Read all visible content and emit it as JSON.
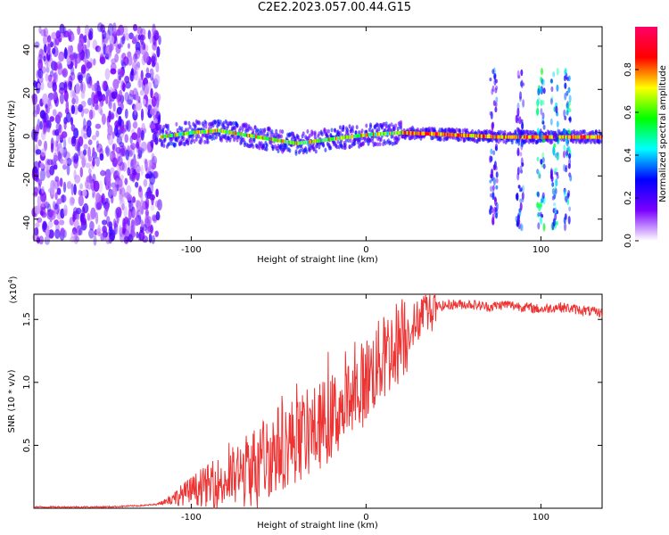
{
  "title": "C2E2.2023.057.00.44.G15",
  "chart_data": [
    {
      "type": "heatmap",
      "xlabel": "Height of straight line (km)",
      "ylabel": "Frequency (Hz)",
      "xlim": [
        -190,
        135
      ],
      "ylim": [
        -50,
        49
      ],
      "x_ticks": [
        "-100",
        "0",
        "100"
      ],
      "y_ticks": [
        "40",
        "20",
        "0",
        "-20",
        "-40"
      ],
      "colorbar": {
        "label": "Normalized spectral amplitude",
        "range": [
          0,
          1
        ],
        "ticks": [
          "0.0",
          "0.2",
          "0.4",
          "0.6",
          "0.8"
        ],
        "colors": [
          "#ffffff",
          "#7a00ff",
          "#0000ff",
          "#00ffff",
          "#00ff00",
          "#ffff00",
          "#ff0000",
          "#ff0066"
        ]
      },
      "regions": [
        {
          "name": "noise",
          "x_range": [
            -190,
            -118
          ],
          "freq_range": [
            -50,
            49
          ],
          "amplitude": 0.15
        },
        {
          "name": "ridge",
          "x_range": [
            -118,
            135
          ],
          "freq": [
            [
              -118,
              -2
            ],
            [
              -100,
              0
            ],
            [
              -85,
              1
            ],
            [
              -70,
              -1
            ],
            [
              -55,
              -3
            ],
            [
              -40,
              -5
            ],
            [
              -30,
              -4
            ],
            [
              -20,
              -3
            ],
            [
              -10,
              -2
            ],
            [
              0,
              -1
            ],
            [
              20,
              0
            ],
            [
              50,
              -1
            ],
            [
              75,
              -2
            ],
            [
              100,
              -2
            ],
            [
              135,
              -2
            ]
          ],
          "amplitude": 0.85
        }
      ]
    },
    {
      "type": "line",
      "xlabel": "Height of straight line (km)",
      "ylabel": "SNR (10 * v/v)",
      "y_multiplier": "(x10",
      "y_multiplier_exp": "4",
      "xlim": [
        -190,
        135
      ],
      "ylim": [
        0,
        1.7
      ],
      "x_ticks": [
        "-100",
        "0",
        "100"
      ],
      "y_ticks": [
        "0.5",
        "1.0",
        "1.5"
      ],
      "color": "#ee3333",
      "series": [
        {
          "x": [
            -190,
            -170,
            -150,
            -130,
            -120,
            -110,
            -100,
            -90,
            -80,
            -70,
            -60,
            -50,
            -40,
            -30,
            -20,
            -10,
            0,
            10,
            20,
            30,
            40,
            50,
            60,
            70,
            80,
            90,
            100,
            110,
            120,
            135
          ],
          "values": [
            0.01,
            0.01,
            0.01,
            0.02,
            0.03,
            0.08,
            0.14,
            0.18,
            0.22,
            0.28,
            0.38,
            0.48,
            0.55,
            0.62,
            0.72,
            0.85,
            1.02,
            1.2,
            1.35,
            1.5,
            1.6,
            1.62,
            1.62,
            1.6,
            1.62,
            1.6,
            1.58,
            1.6,
            1.58,
            1.55
          ]
        }
      ]
    }
  ]
}
